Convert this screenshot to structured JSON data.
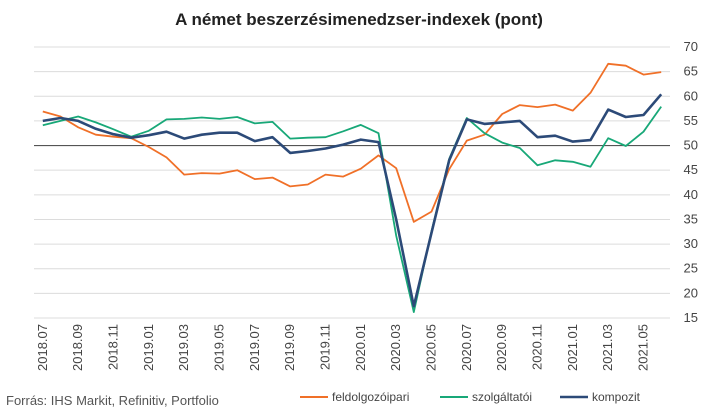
{
  "chart_data": {
    "type": "line",
    "title": "A német beszerzésimenedzser-indexek (pont)",
    "source": "Forrás: IHS Markit, Refinitiv, Portfolio",
    "ylim": [
      15,
      70
    ],
    "yticks": [
      15,
      20,
      25,
      30,
      35,
      40,
      45,
      50,
      55,
      60,
      65,
      70
    ],
    "grid": true,
    "reference_line": 50,
    "x": [
      "2018.07",
      "2018.08",
      "2018.09",
      "2018.10",
      "2018.11",
      "2018.12",
      "2019.01",
      "2019.02",
      "2019.03",
      "2019.04",
      "2019.05",
      "2019.06",
      "2019.07",
      "2019.08",
      "2019.09",
      "2019.10",
      "2019.11",
      "2019.12",
      "2020.01",
      "2020.02",
      "2020.03",
      "2020.04",
      "2020.05",
      "2020.06",
      "2020.07",
      "2020.08",
      "2020.09",
      "2020.10",
      "2020.11",
      "2020.12",
      "2021.01",
      "2021.02",
      "2021.03",
      "2021.04",
      "2021.05",
      "2021.06"
    ],
    "xtick_labels": [
      "2018.07",
      "2018.09",
      "2018.11",
      "2019.01",
      "2019.03",
      "2019.05",
      "2019.07",
      "2019.09",
      "2019.11",
      "2020.01",
      "2020.03",
      "2020.05",
      "2020.07",
      "2020.09",
      "2020.11",
      "2021.01",
      "2021.03",
      "2021.05"
    ],
    "legend_position": "bottom",
    "series": [
      {
        "name": "feldolgozóipari",
        "color": "#f07028",
        "values": [
          56.9,
          55.9,
          53.7,
          52.2,
          51.8,
          51.5,
          49.7,
          47.6,
          44.1,
          44.4,
          44.3,
          45.0,
          43.2,
          43.5,
          41.7,
          42.1,
          44.1,
          43.7,
          45.3,
          48.0,
          45.4,
          34.5,
          36.6,
          45.2,
          51.0,
          52.2,
          56.4,
          58.2,
          57.8,
          58.3,
          57.1,
          60.7,
          66.6,
          66.2,
          64.4,
          64.9
        ]
      },
      {
        "name": "szolgáltatói",
        "color": "#18a878",
        "values": [
          54.1,
          55.0,
          55.9,
          54.7,
          53.3,
          51.8,
          53.0,
          55.3,
          55.4,
          55.7,
          55.4,
          55.8,
          54.5,
          54.8,
          51.4,
          51.6,
          51.7,
          52.9,
          54.2,
          52.5,
          31.7,
          16.2,
          32.6,
          47.3,
          55.6,
          52.5,
          50.6,
          49.5,
          46.0,
          47.0,
          46.7,
          45.7,
          51.5,
          49.9,
          52.8,
          57.9
        ]
      },
      {
        "name": "kompozit",
        "color": "#2c4a78",
        "values": [
          55.0,
          55.6,
          55.0,
          53.4,
          52.3,
          51.6,
          52.1,
          52.8,
          51.4,
          52.2,
          52.6,
          52.6,
          50.9,
          51.7,
          48.5,
          48.9,
          49.4,
          50.2,
          51.2,
          50.7,
          35.0,
          17.4,
          32.3,
          47.0,
          55.3,
          54.4,
          54.7,
          55.0,
          51.7,
          52.0,
          50.8,
          51.1,
          57.3,
          55.8,
          56.2,
          60.4
        ]
      }
    ]
  }
}
